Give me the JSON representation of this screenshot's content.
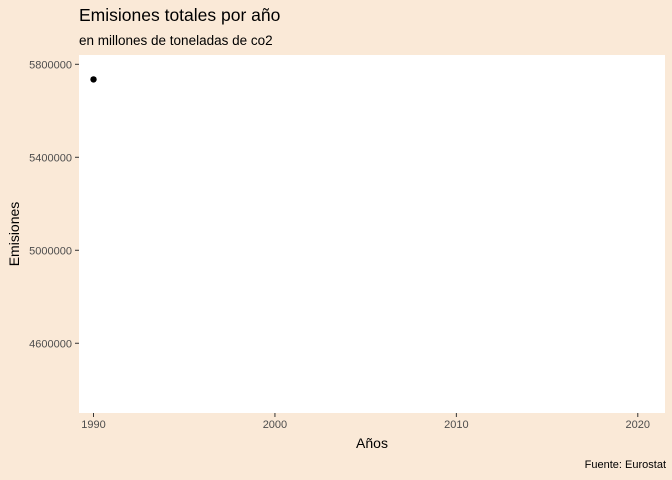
{
  "chart_data": {
    "type": "scatter",
    "title": "Emisiones totales por año",
    "subtitle": "en millones de toneladas de co2",
    "xlabel": "Años",
    "ylabel": "Emisiones",
    "caption": "Fuente: Eurostat",
    "x_ticks": [
      1990,
      2000,
      2010,
      2020
    ],
    "y_ticks": [
      4600000,
      5000000,
      5400000,
      5800000
    ],
    "x_tick_labels": [
      "1990",
      "2000",
      "2010",
      "2020"
    ],
    "y_tick_labels": [
      "4600000",
      "5000000",
      "5400000",
      "5800000"
    ],
    "xlim": [
      1989.2,
      2021.5
    ],
    "ylim": [
      4300000,
      5840000
    ],
    "grid": false,
    "series": [
      {
        "points": [
          {
            "x": 1990,
            "y": 5735000
          }
        ]
      }
    ],
    "colors": {
      "background": "#fae9d7",
      "panel": "#ffffff",
      "point": "#000000"
    }
  }
}
